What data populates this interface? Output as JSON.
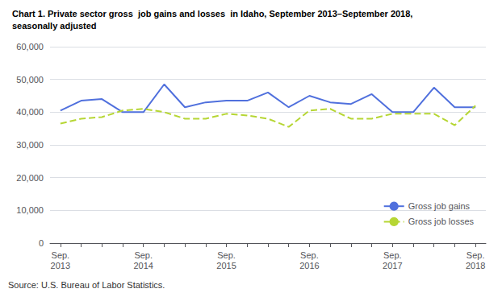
{
  "chart_data": {
    "type": "line",
    "title": "Chart 1. Private sector gross  job gains and losses  in Idaho, September 2013–September 2018,",
    "subtitle": "seasonally adjusted",
    "annotations": [
      "Source: U.S. Bureau of Labor Statistics."
    ],
    "categories": [
      "Sep.\n2013",
      null,
      null,
      null,
      "Sep.\n2014",
      null,
      null,
      null,
      "Sep.\n2015",
      null,
      null,
      null,
      "Sep.\n2016",
      null,
      null,
      null,
      "Sep.\n2017",
      null,
      null,
      null,
      "Sep.\n2018"
    ],
    "series": [
      {
        "name": "Gross job gains",
        "line_style": "solid",
        "values": [
          40500,
          43500,
          44000,
          40000,
          40000,
          48500,
          41500,
          43000,
          43500,
          43500,
          46000,
          41500,
          45000,
          43000,
          42500,
          45500,
          40000,
          40000,
          47500,
          41500,
          41500
        ]
      },
      {
        "name": "Gross job losses",
        "line_style": "dashed",
        "values": [
          36500,
          38000,
          38500,
          40500,
          41000,
          40000,
          38000,
          38000,
          39500,
          39000,
          38000,
          35500,
          40500,
          41000,
          38000,
          38000,
          39500,
          39500,
          39500,
          36000,
          42000
        ]
      }
    ],
    "ylim": [
      0,
      60000
    ],
    "yticks": [
      0,
      {
        "value": 10000,
        "label": "10,000"
      },
      {
        "value": 20000,
        "label": "20,000"
      },
      {
        "value": 30000,
        "label": "30,000"
      },
      {
        "value": 40000,
        "label": "40,000"
      },
      {
        "value": 50000,
        "label": "50,000"
      },
      {
        "value": 60000,
        "label": "60,000"
      }
    ],
    "grid": true,
    "legend": "lower right"
  }
}
